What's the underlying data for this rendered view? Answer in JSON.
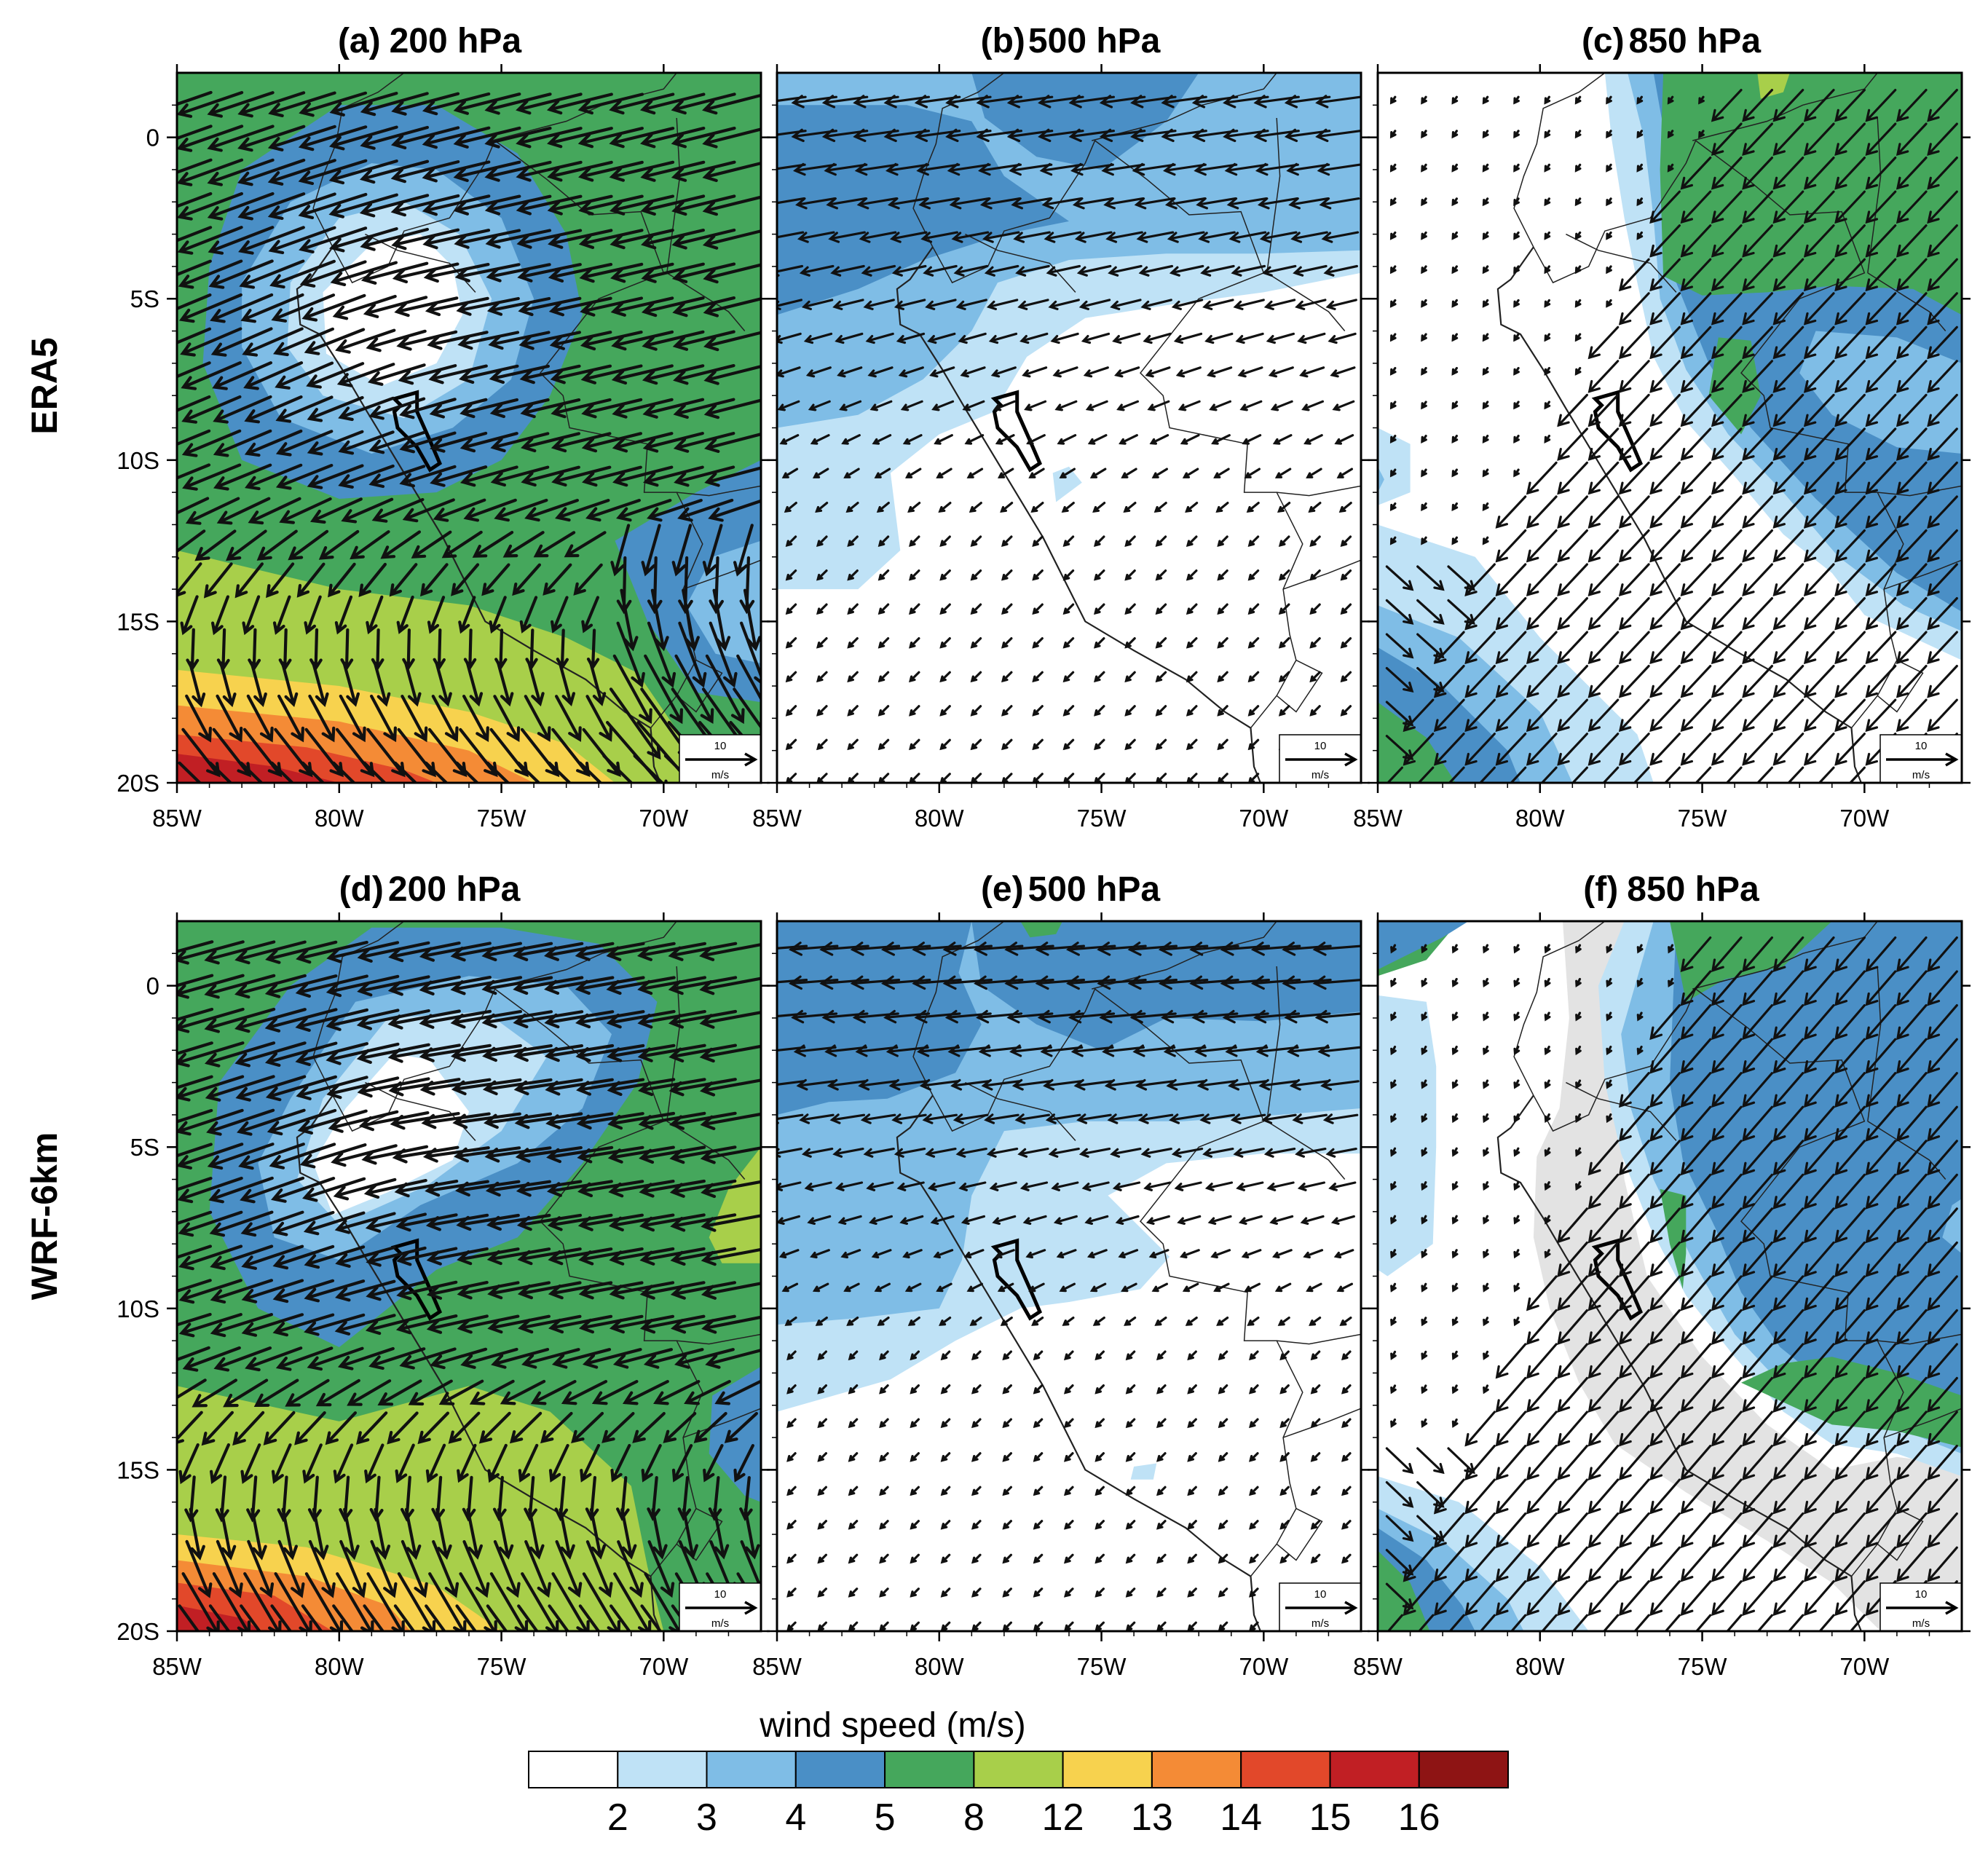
{
  "figure": {
    "rows": [
      {
        "label": "ERA5"
      },
      {
        "label": "WRF-6km"
      }
    ],
    "panels": [
      {
        "id": "a",
        "tag": "(a)",
        "level": "200 hPa"
      },
      {
        "id": "b",
        "tag": "(b)",
        "level": "500 hPa"
      },
      {
        "id": "c",
        "tag": "(c)",
        "level": "850 hPa"
      },
      {
        "id": "d",
        "tag": "(d)",
        "level": "200 hPa"
      },
      {
        "id": "e",
        "tag": "(e)",
        "level": "500 hPa"
      },
      {
        "id": "f",
        "tag": "(f)",
        "level": "850 hPa"
      }
    ],
    "lat_ticks": [
      "0",
      "5S",
      "10S",
      "15S",
      "20S"
    ],
    "lat_values": [
      0,
      -5,
      -10,
      -15,
      -20
    ],
    "lon_ticks": [
      "85W",
      "80W",
      "75W",
      "70W"
    ],
    "lon_values": [
      -85,
      -80,
      -75,
      -70
    ],
    "lon_range": [
      -85,
      -67
    ],
    "lat_range": [
      -20,
      2
    ],
    "reference_vector": {
      "value": "10",
      "unit": "m/s"
    },
    "colorbar": {
      "title": "wind speed (m/s)",
      "labels": [
        "2",
        "3",
        "4",
        "5",
        "8",
        "12",
        "13",
        "14",
        "15",
        "16"
      ],
      "colors": [
        "#ffffff",
        "#bfe2f6",
        "#7fbde6",
        "#4a8fc6",
        "#45a75c",
        "#a8cf4a",
        "#f7d24e",
        "#f48b36",
        "#e2482a",
        "#c11f24",
        "#8e1414"
      ]
    },
    "colors": {
      "land_mask": "#e3e3e3",
      "vector": "#111111",
      "coastline": "#222222"
    }
  }
}
